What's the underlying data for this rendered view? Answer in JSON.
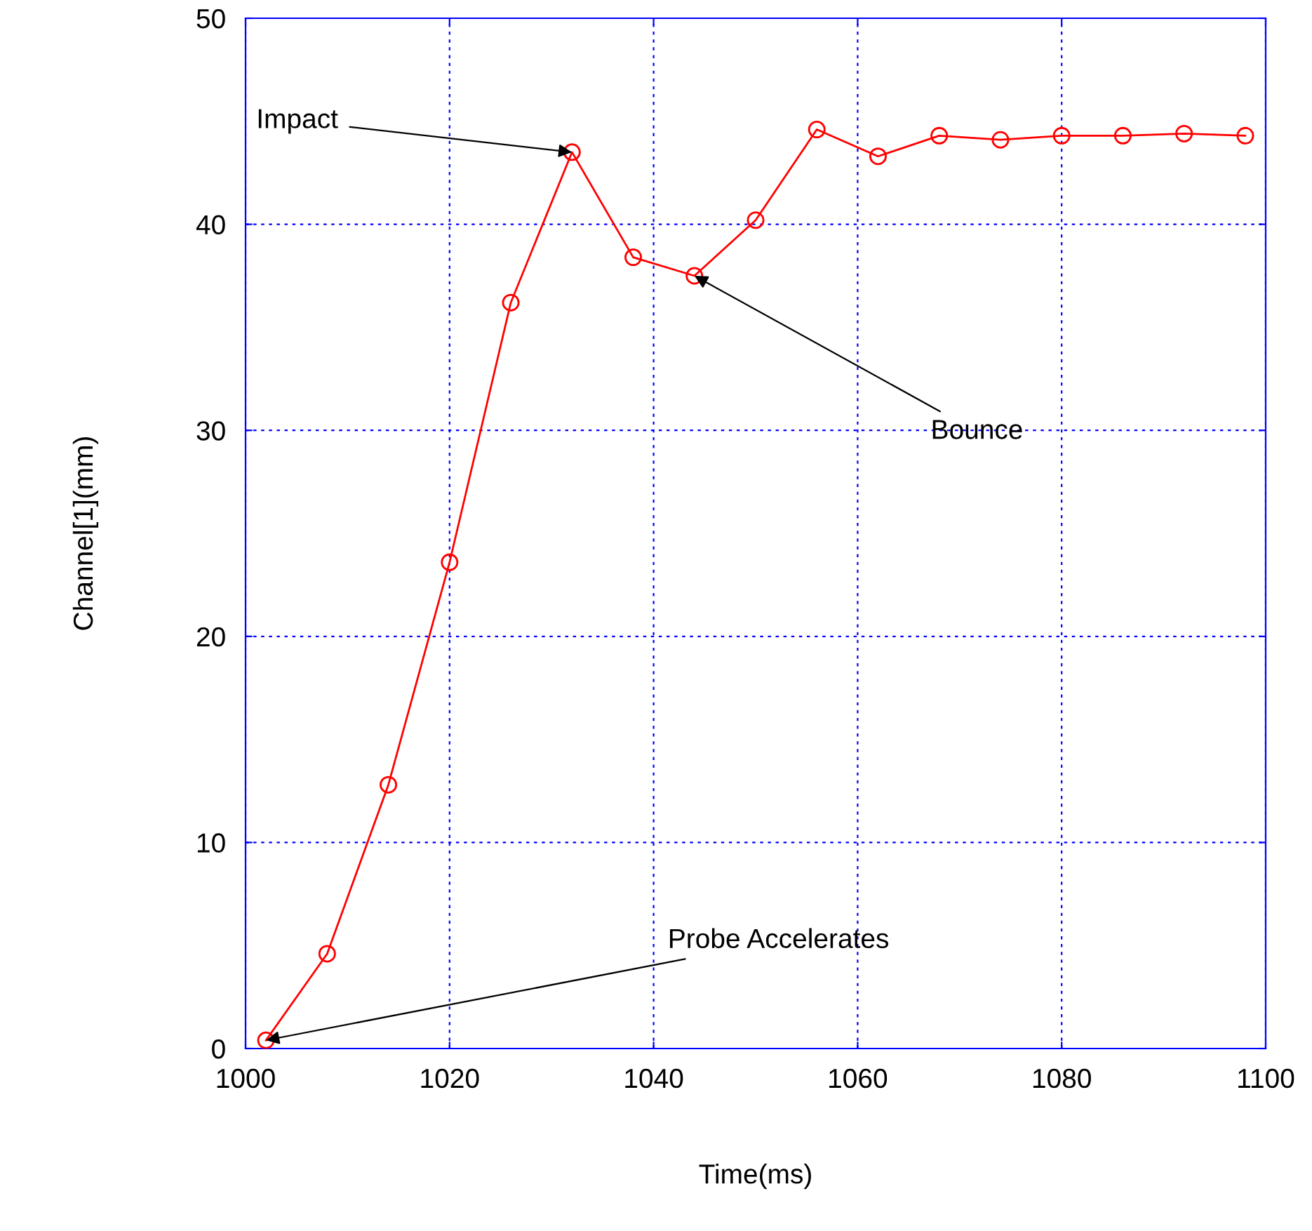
{
  "chart_data": {
    "type": "line",
    "xlabel": "Time(ms)",
    "ylabel": "Channel[1](mm)",
    "x": [
      1002,
      1008,
      1014,
      1020,
      1026,
      1032,
      1038,
      1044,
      1050,
      1056,
      1062,
      1068,
      1074,
      1080,
      1086,
      1092,
      1098
    ],
    "series": [
      {
        "color": "#ff0000",
        "values": [
          0.4,
          4.6,
          12.8,
          23.6,
          36.2,
          43.5,
          38.4,
          37.5,
          40.2,
          44.6,
          43.3,
          44.3,
          44.1,
          44.3,
          44.3,
          44.4,
          44.3
        ]
      }
    ],
    "marker": "circle",
    "line_style": "solid",
    "grid": true,
    "xlim": [
      1000,
      1100
    ],
    "xticks": [
      1000,
      1020,
      1040,
      1060,
      1080,
      1100
    ],
    "ylim": [
      0,
      50
    ],
    "yticks": [
      0,
      10,
      20,
      30,
      40,
      50
    ],
    "annotations": [
      {
        "text": "Impact",
        "x": 1032,
        "y": 43.5
      },
      {
        "text": "Bounce",
        "x": 1044,
        "y": 37.5
      },
      {
        "text": "Probe Accelerates",
        "x": 1002,
        "y": 0.4
      }
    ]
  }
}
